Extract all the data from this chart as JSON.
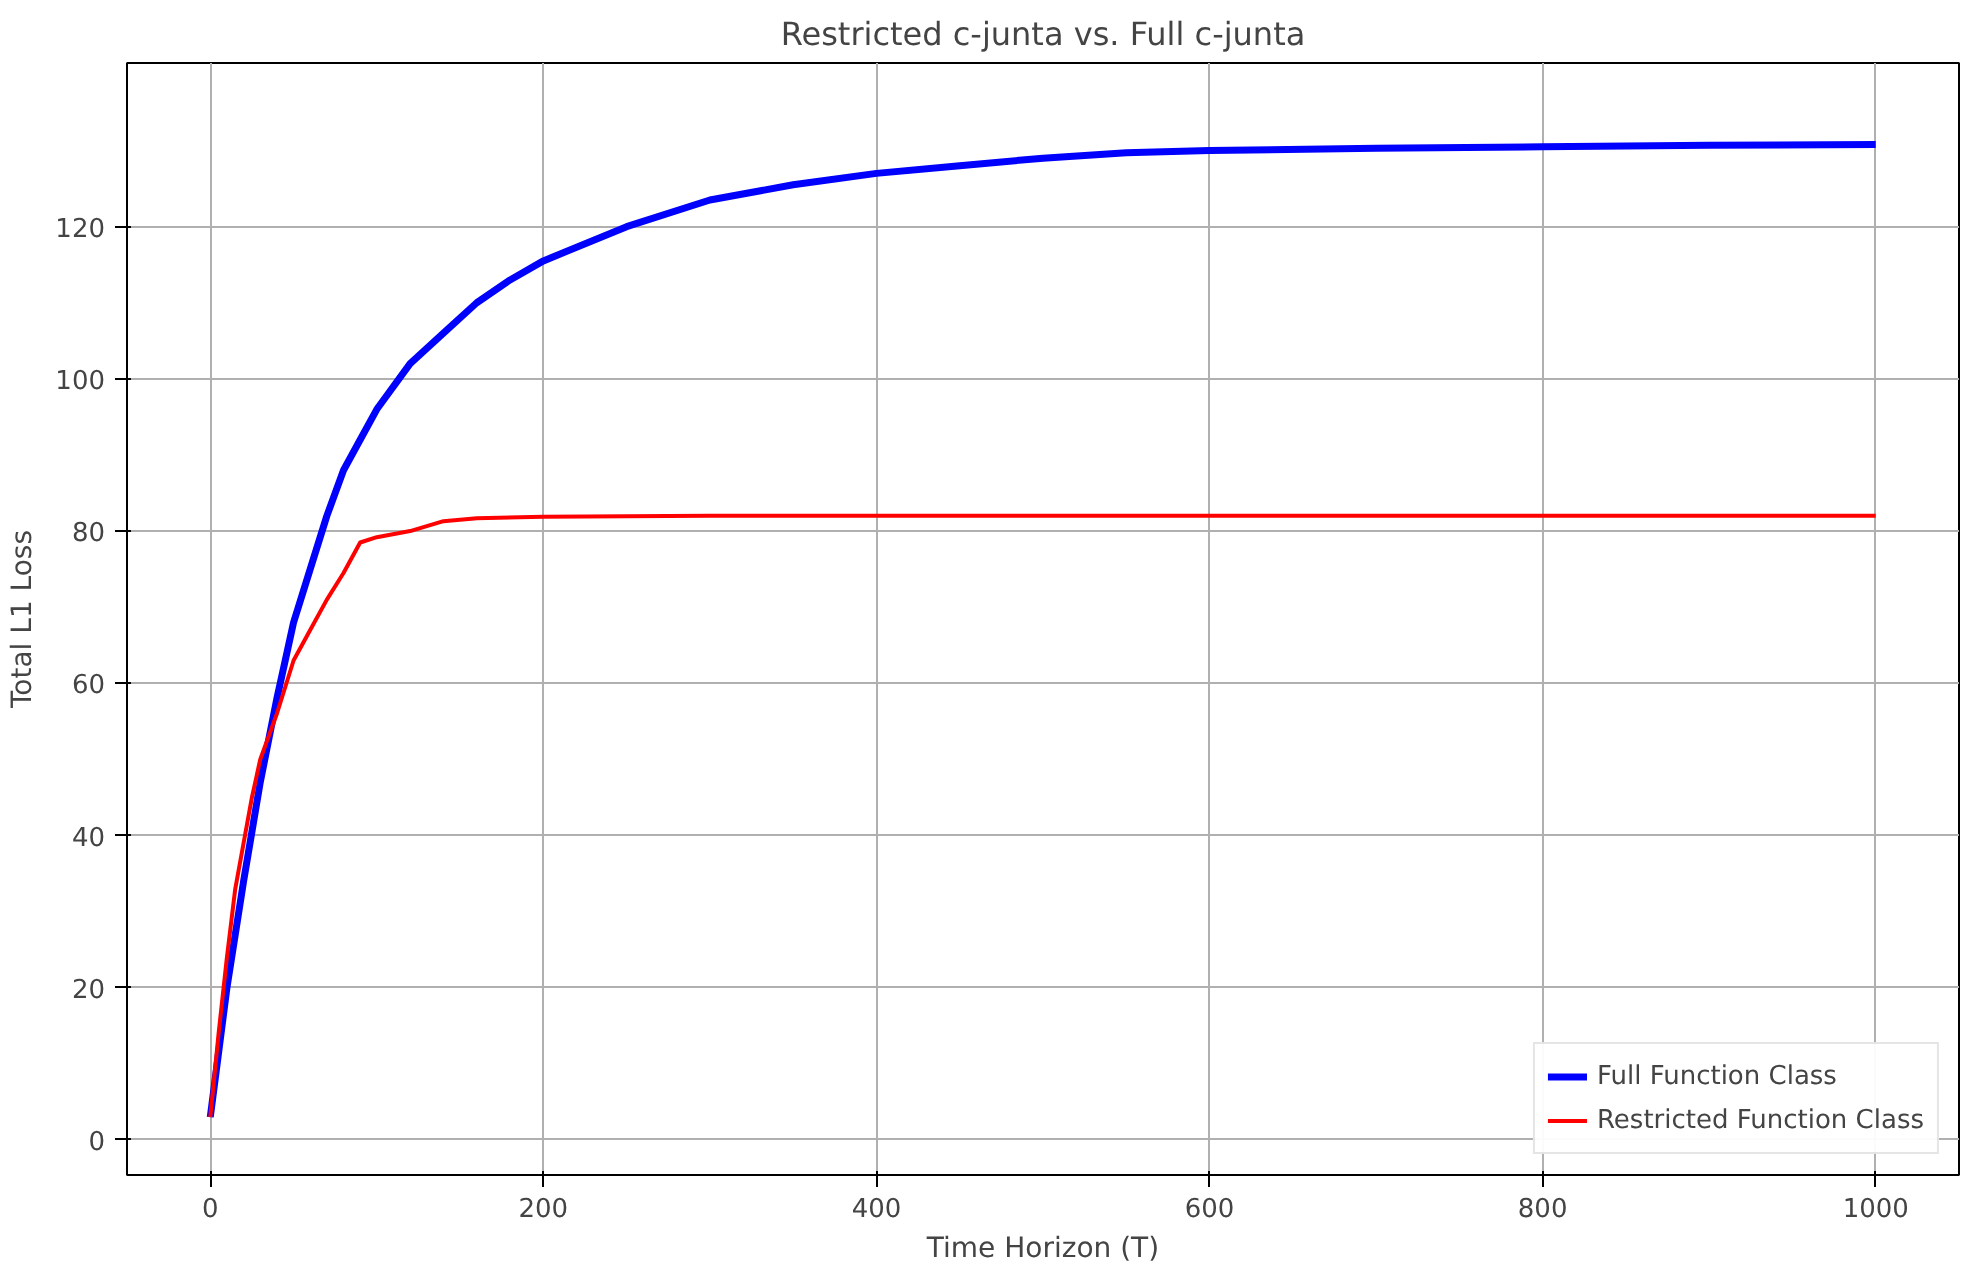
{
  "chart_data": {
    "type": "line",
    "title": "Restricted c-junta vs. Full c-junta",
    "xlabel": "Time Horizon (T)",
    "ylabel": "Total L1 Loss",
    "xlim": [
      -50,
      1050
    ],
    "ylim": [
      -4.6,
      141.5
    ],
    "xticks": [
      0,
      200,
      400,
      600,
      800,
      1000
    ],
    "yticks": [
      0,
      20,
      40,
      60,
      80,
      100,
      120
    ],
    "grid": true,
    "legend": "bottom right",
    "line_style": "solid",
    "series": [
      {
        "name": "Full Function Class",
        "color": "#0000ff",
        "x": [
          0,
          10,
          20,
          30,
          40,
          50,
          60,
          70,
          80,
          90,
          100,
          120,
          140,
          160,
          180,
          200,
          250,
          300,
          350,
          400,
          450,
          500,
          550,
          600,
          700,
          800,
          900,
          1000
        ],
        "values": [
          3,
          20,
          34,
          47,
          58,
          68,
          75,
          82,
          88,
          92,
          96,
          102,
          106,
          110,
          113,
          115.5,
          120,
          123.5,
          125.5,
          127,
          128,
          129,
          129.7,
          130,
          130.3,
          130.5,
          130.7,
          130.8
        ]
      },
      {
        "name": "Restricted Function Class",
        "color": "#ff0000",
        "x": [
          0,
          5,
          10,
          15,
          20,
          25,
          30,
          40,
          50,
          60,
          70,
          80,
          90,
          100,
          120,
          140,
          160,
          200,
          300,
          1000
        ],
        "values": [
          3,
          14,
          24,
          33,
          39,
          45,
          50,
          56,
          63,
          67,
          71,
          74.5,
          78.5,
          79.2,
          80,
          81.3,
          81.7,
          81.9,
          82,
          82
        ]
      }
    ]
  }
}
